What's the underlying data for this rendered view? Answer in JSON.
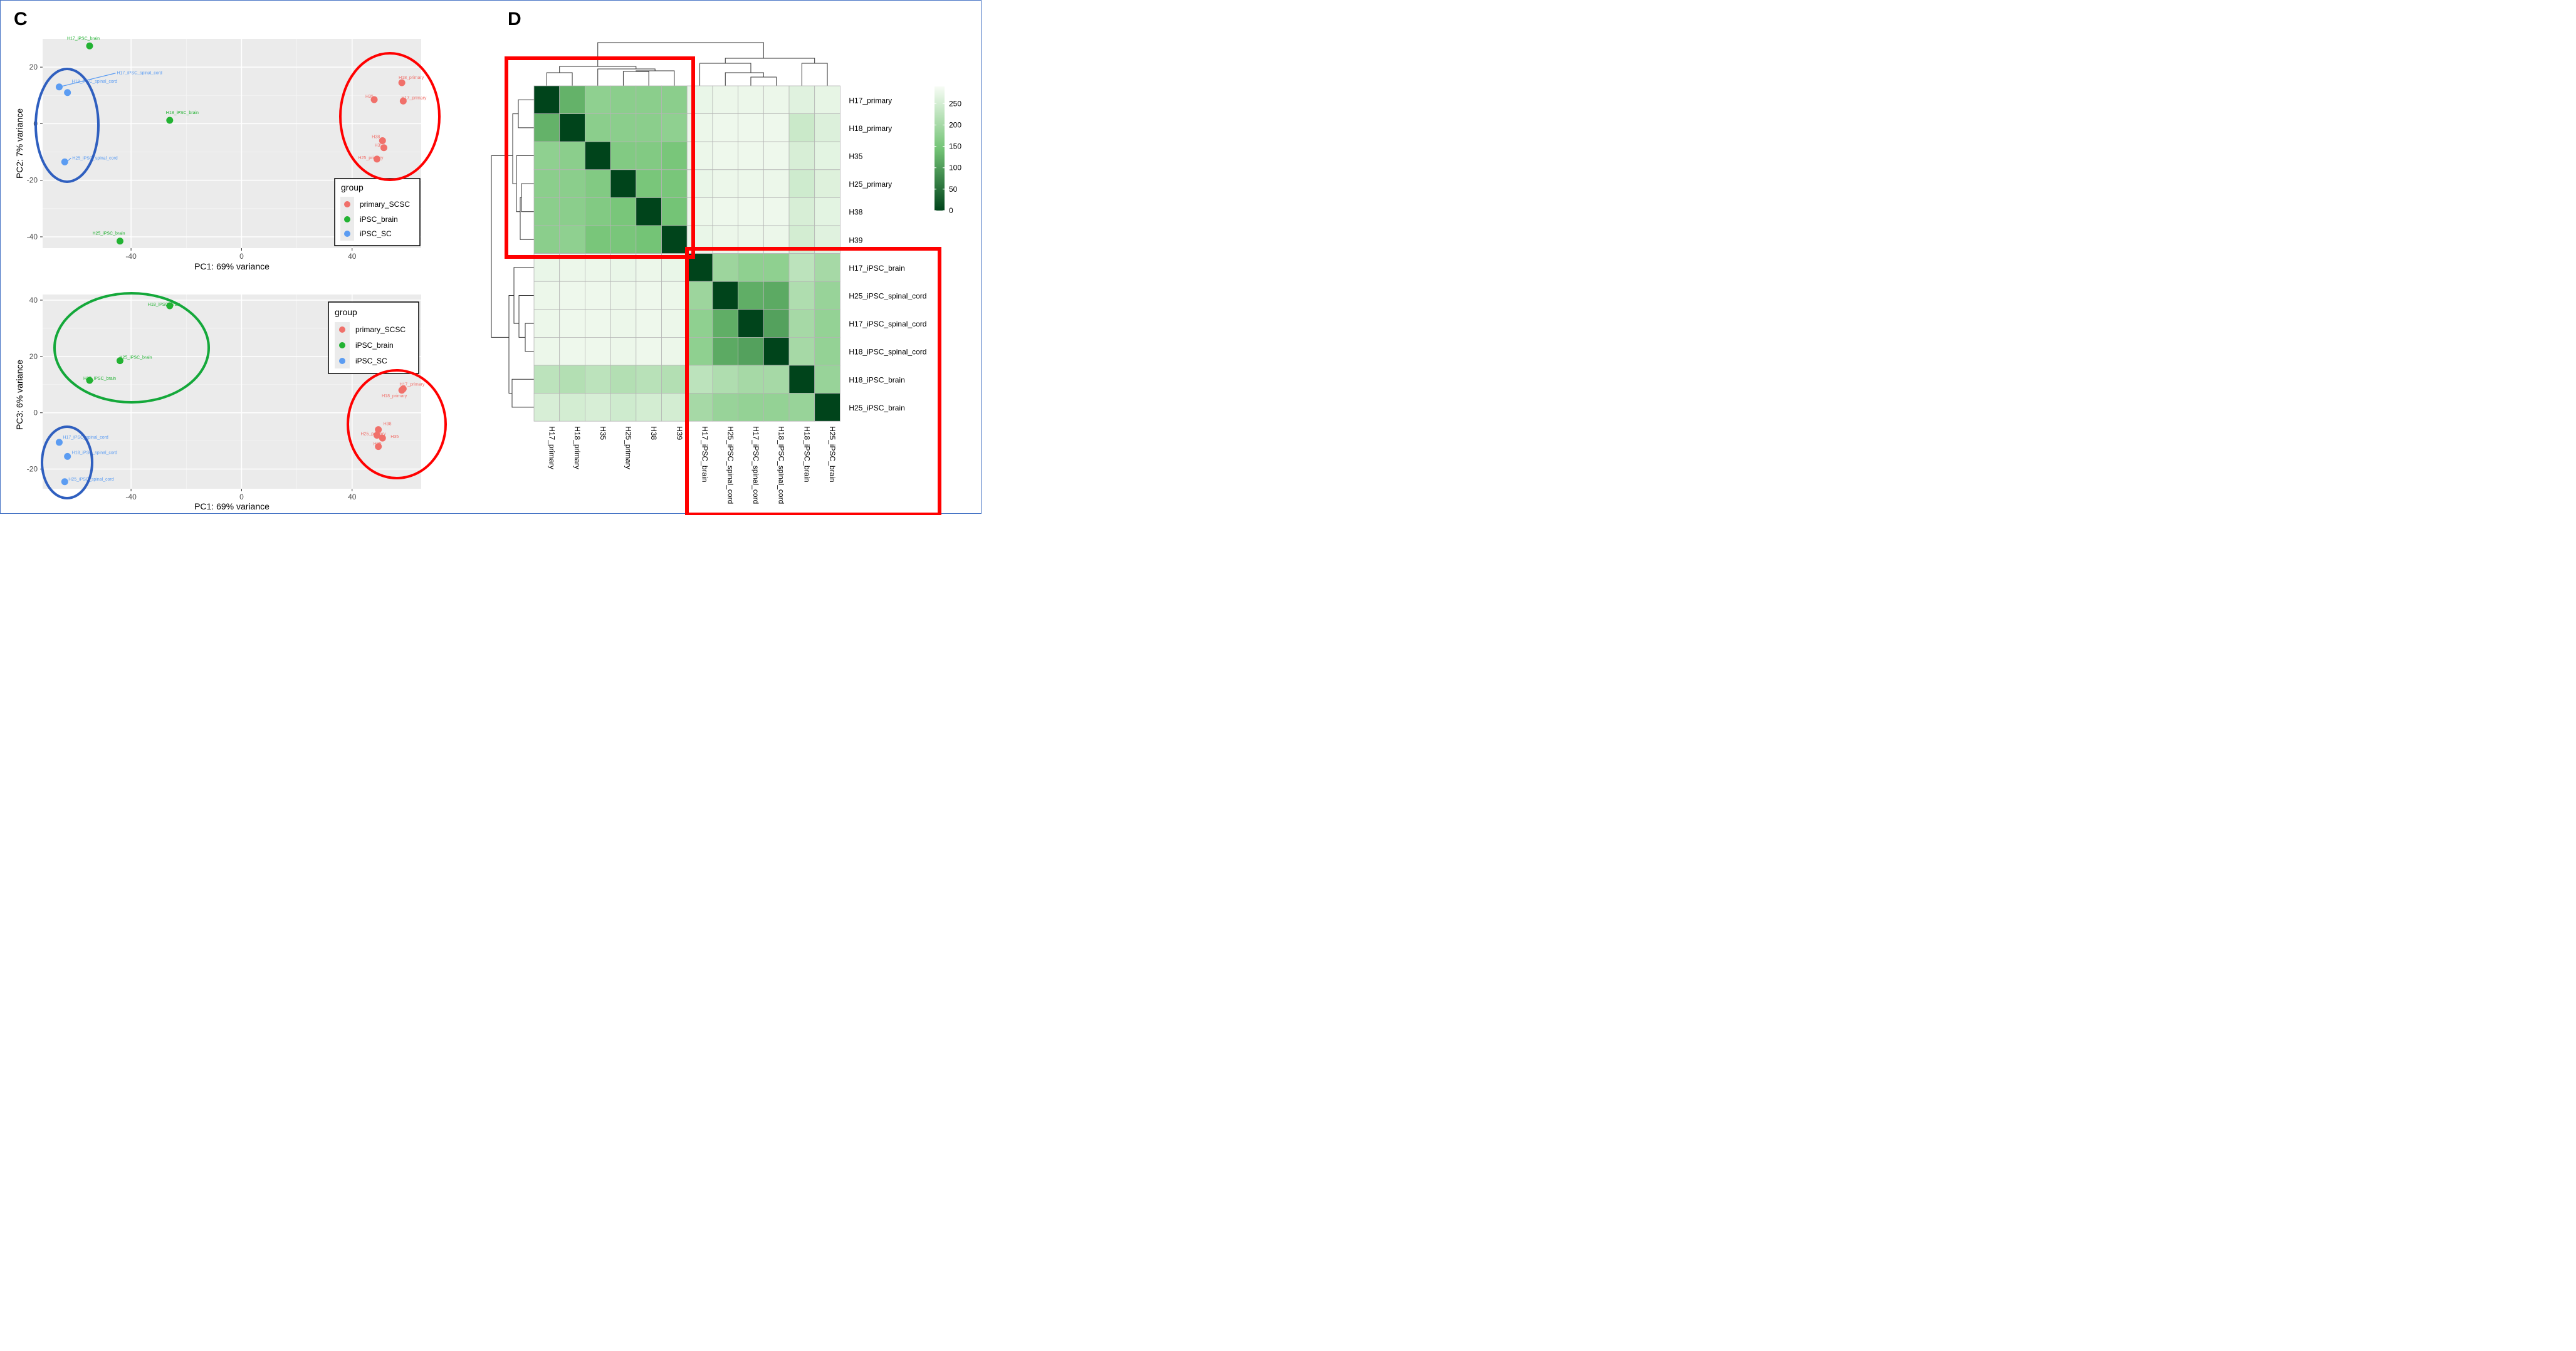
{
  "panels": [
    {
      "id": "C",
      "label": "C"
    },
    {
      "id": "D",
      "label": "D"
    }
  ],
  "colors": {
    "primary_SCSC": "#f0706a",
    "iPSC_brain": "#22b232",
    "iPSC_SC": "#5b9cf2",
    "panel_bg": "#ebebeb",
    "highlight_red": "#ff0000",
    "highlight_blue": "#2f5fbf",
    "highlight_green": "#14a83a"
  },
  "chart_data": [
    {
      "type": "scatter",
      "title": "",
      "xlabel": "PC1: 69% variance",
      "ylabel": "PC2: 7% variance",
      "xlim": [
        -72,
        65
      ],
      "ylim": [
        -44,
        30
      ],
      "xticks": [
        "-40",
        "0",
        "40"
      ],
      "xtick_values": [
        -40,
        0,
        40
      ],
      "yticks": [
        "20",
        "0",
        "-20",
        "-40"
      ],
      "ytick_values": [
        20,
        0,
        -20,
        -40
      ],
      "grid": true,
      "legend": {
        "title": "group",
        "position": "right",
        "entries": [
          {
            "name": "primary_SCSC",
            "color": "#f0706a"
          },
          {
            "name": "iPSC_brain",
            "color": "#22b232"
          },
          {
            "name": "iPSC_SC",
            "color": "#5b9cf2"
          }
        ]
      },
      "points": [
        {
          "x": -55,
          "y": 27.5,
          "group": "iPSC_brain",
          "label": "H17_iPSC_brain"
        },
        {
          "x": -26,
          "y": 1.2,
          "group": "iPSC_brain",
          "label": "H18_iPSC_brain"
        },
        {
          "x": -44,
          "y": -41.5,
          "group": "iPSC_brain",
          "label": "H25_iPSC_brain"
        },
        {
          "x": -66,
          "y": 13,
          "group": "iPSC_SC",
          "label": "H17_iPSC_spinal_cord"
        },
        {
          "x": -63,
          "y": 11,
          "group": "iPSC_SC",
          "label": "H18_iPSC_spinal_cord"
        },
        {
          "x": -64,
          "y": -13.5,
          "group": "iPSC_SC",
          "label": "H25_iPSC_spinal_cord"
        },
        {
          "x": 58,
          "y": 14.5,
          "group": "primary_SCSC",
          "label": "H18_primary"
        },
        {
          "x": 48,
          "y": 8.5,
          "group": "primary_SCSC",
          "label": "H35"
        },
        {
          "x": 58.5,
          "y": 8,
          "group": "primary_SCSC",
          "label": "H17_primary"
        },
        {
          "x": 51,
          "y": -6,
          "group": "primary_SCSC",
          "label": "H38"
        },
        {
          "x": 51.5,
          "y": -8.5,
          "group": "primary_SCSC",
          "label": "H39"
        },
        {
          "x": 49,
          "y": -12.5,
          "group": "primary_SCSC",
          "label": "H25_primary"
        }
      ]
    },
    {
      "type": "scatter",
      "title": "",
      "xlabel": "PC1: 69% variance",
      "ylabel": "PC3: 6% variance",
      "xlim": [
        -72,
        65
      ],
      "ylim": [
        -27,
        42
      ],
      "xticks": [
        "-40",
        "0",
        "40"
      ],
      "xtick_values": [
        -40,
        0,
        40
      ],
      "yticks": [
        "40",
        "20",
        "0",
        "-20"
      ],
      "ytick_values": [
        40,
        20,
        0,
        -20
      ],
      "grid": true,
      "legend": {
        "title": "group",
        "position": "top-right",
        "entries": [
          {
            "name": "primary_SCSC",
            "color": "#f0706a"
          },
          {
            "name": "iPSC_brain",
            "color": "#22b232"
          },
          {
            "name": "iPSC_SC",
            "color": "#5b9cf2"
          }
        ]
      },
      "points": [
        {
          "x": -26,
          "y": 38,
          "group": "iPSC_brain",
          "label": "H18_iPSC_brain"
        },
        {
          "x": -44,
          "y": 18.5,
          "group": "iPSC_brain",
          "label": "H25_iPSC_brain"
        },
        {
          "x": -55,
          "y": 11.5,
          "group": "iPSC_brain",
          "label": "H17_iPSC_brain"
        },
        {
          "x": -66,
          "y": -10.5,
          "group": "iPSC_SC",
          "label": "H17_iPSC_spinal_cord"
        },
        {
          "x": -63,
          "y": -15.5,
          "group": "iPSC_SC",
          "label": "H18_iPSC_spinal_cord"
        },
        {
          "x": -64,
          "y": -24.5,
          "group": "iPSC_SC",
          "label": "H25_iPSC_spinal_cord"
        },
        {
          "x": 58.5,
          "y": 8.5,
          "group": "primary_SCSC",
          "label": "H17_primary"
        },
        {
          "x": 58,
          "y": 8,
          "group": "primary_SCSC",
          "label": "H18_primary"
        },
        {
          "x": 49.5,
          "y": -6,
          "group": "primary_SCSC",
          "label": "H38"
        },
        {
          "x": 49,
          "y": -8,
          "group": "primary_SCSC",
          "label": "H25_primary"
        },
        {
          "x": 51,
          "y": -9,
          "group": "primary_SCSC",
          "label": "H35"
        },
        {
          "x": 49.5,
          "y": -12,
          "group": "primary_SCSC",
          "label": "H39"
        }
      ]
    },
    {
      "type": "heatmap",
      "title": "",
      "row_labels": [
        "H17_primary",
        "H18_primary",
        "H35",
        "H25_primary",
        "H38",
        "H39",
        "H17_iPSC_brain",
        "H25_iPSC_spinal_cord",
        "H17_iPSC_spinal_cord",
        "H18_iPSC_spinal_cord",
        "H18_iPSC_brain",
        "H25_iPSC_brain"
      ],
      "col_labels": [
        "H17_primary",
        "H18_primary",
        "H35",
        "H25_primary",
        "H38",
        "H39",
        "H17_iPSC_brain",
        "H25_iPSC_spinal_cord",
        "H17_iPSC_spinal_cord",
        "H18_iPSC_spinal_cord",
        "H18_iPSC_brain",
        "H25_iPSC_brain"
      ],
      "values": [
        [
          0,
          125,
          175,
          170,
          170,
          170,
          275,
          278,
          278,
          278,
          265,
          272
        ],
        [
          125,
          0,
          170,
          170,
          170,
          175,
          278,
          280,
          280,
          280,
          240,
          260
        ],
        [
          175,
          170,
          0,
          160,
          160,
          150,
          278,
          280,
          280,
          280,
          255,
          268
        ],
        [
          170,
          170,
          160,
          0,
          150,
          150,
          275,
          278,
          278,
          278,
          245,
          262
        ],
        [
          170,
          170,
          160,
          150,
          0,
          145,
          278,
          280,
          280,
          280,
          255,
          268
        ],
        [
          170,
          175,
          150,
          150,
          145,
          0,
          275,
          278,
          278,
          278,
          250,
          265
        ],
        [
          275,
          278,
          278,
          275,
          278,
          275,
          0,
          190,
          175,
          175,
          225,
          200
        ],
        [
          278,
          280,
          280,
          278,
          280,
          278,
          190,
          0,
          120,
          115,
          210,
          185
        ],
        [
          278,
          280,
          280,
          278,
          280,
          278,
          175,
          120,
          0,
          105,
          200,
          180
        ],
        [
          278,
          280,
          280,
          278,
          280,
          278,
          175,
          115,
          105,
          0,
          200,
          180
        ],
        [
          225,
          215,
          225,
          215,
          220,
          215,
          225,
          210,
          200,
          200,
          0,
          185
        ],
        [
          255,
          250,
          255,
          245,
          250,
          250,
          200,
          185,
          180,
          180,
          185,
          0
        ]
      ],
      "color_scale": {
        "min": 0,
        "max": 290,
        "low_color": "#00441b",
        "high_color": "#f7fcf5"
      },
      "colorbar_ticks": [
        "250",
        "200",
        "150",
        "100",
        "50",
        "0"
      ],
      "colorbar_tick_values": [
        250,
        200,
        150,
        100,
        50,
        0
      ],
      "dendrogram": "rows and columns clustered"
    }
  ]
}
